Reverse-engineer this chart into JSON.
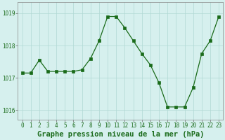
{
  "x": [
    0,
    1,
    2,
    3,
    4,
    5,
    6,
    7,
    8,
    9,
    10,
    11,
    12,
    13,
    14,
    15,
    16,
    17,
    18,
    19,
    20,
    21,
    22,
    23
  ],
  "y": [
    1017.15,
    1017.15,
    1017.55,
    1017.2,
    1017.2,
    1017.2,
    1017.2,
    1017.25,
    1017.6,
    1018.15,
    1018.9,
    1018.9,
    1018.55,
    1018.15,
    1017.75,
    1017.4,
    1016.85,
    1016.1,
    1016.1,
    1016.1,
    1016.7,
    1017.75,
    1018.15,
    1018.9
  ],
  "line_color": "#1a6b1a",
  "marker": "s",
  "marker_size": 2.5,
  "background_color": "#d6f0ee",
  "grid_color": "#b0d8d4",
  "xlabel": "Graphe pression niveau de la mer (hPa)",
  "ylim": [
    1015.7,
    1019.35
  ],
  "xlim": [
    -0.5,
    23.5
  ],
  "yticks": [
    1016,
    1017,
    1018,
    1019
  ],
  "xticks": [
    0,
    1,
    2,
    3,
    4,
    5,
    6,
    7,
    8,
    9,
    10,
    11,
    12,
    13,
    14,
    15,
    16,
    17,
    18,
    19,
    20,
    21,
    22,
    23
  ],
  "tick_label_fontsize": 5.5,
  "xlabel_fontsize": 7.5
}
